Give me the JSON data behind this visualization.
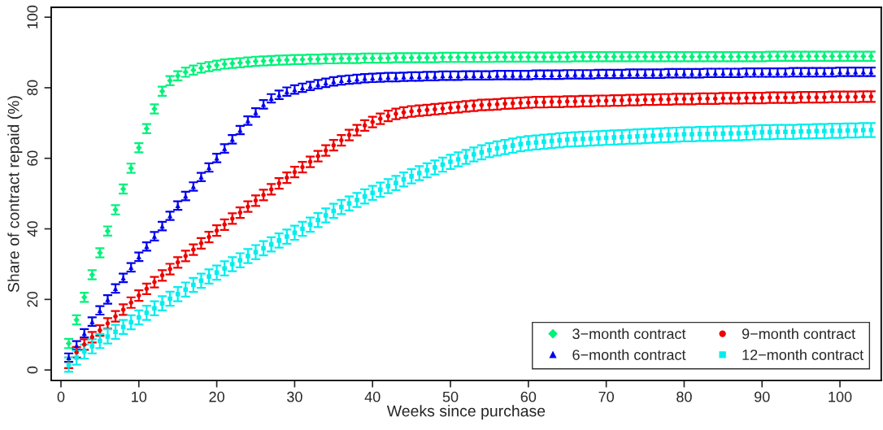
{
  "chart_data": {
    "type": "scatter",
    "xlabel": "Weeks since purchase",
    "ylabel": "Share of contract repaid (%)",
    "x": [
      1,
      2,
      3,
      4,
      5,
      6,
      7,
      8,
      9,
      10,
      11,
      12,
      13,
      14,
      15,
      16,
      17,
      18,
      19,
      20,
      21,
      22,
      23,
      24,
      25,
      26,
      27,
      28,
      29,
      30,
      31,
      32,
      33,
      34,
      35,
      36,
      37,
      38,
      39,
      40,
      41,
      42,
      43,
      44,
      45,
      46,
      47,
      48,
      49,
      50,
      51,
      52,
      53,
      54,
      55,
      56,
      57,
      58,
      59,
      60,
      61,
      62,
      63,
      64,
      65,
      66,
      67,
      68,
      69,
      70,
      71,
      72,
      73,
      74,
      75,
      76,
      77,
      78,
      79,
      80,
      81,
      82,
      83,
      84,
      85,
      86,
      87,
      88,
      89,
      90,
      91,
      92,
      93,
      94,
      95,
      96,
      97,
      98,
      99,
      100,
      101,
      102,
      103,
      104
    ],
    "xlim": [
      -1.25,
      105.3
    ],
    "xticks": [
      0,
      10,
      20,
      30,
      40,
      50,
      60,
      70,
      80,
      90,
      100
    ],
    "ylim": [
      -3,
      102.8
    ],
    "yticks": [
      0,
      20,
      40,
      60,
      80,
      100
    ],
    "grid": false,
    "legend": "bottom right",
    "series": [
      {
        "name": "3−month contract",
        "color": "#00f27a",
        "marker": "diamond",
        "values": [
          7.5,
          14.2,
          20.6,
          27.0,
          33.2,
          39.4,
          45.4,
          51.3,
          57.2,
          63.0,
          68.4,
          74.0,
          79.0,
          82.0,
          83.4,
          84.4,
          85.0,
          85.6,
          86.0,
          86.4,
          86.7,
          86.9,
          87.1,
          87.3,
          87.5,
          87.6,
          87.7,
          87.8,
          87.9,
          88.0,
          88.0,
          88.1,
          88.1,
          88.2,
          88.2,
          88.3,
          88.3,
          88.3,
          88.4,
          88.4,
          88.4,
          88.4,
          88.5,
          88.5,
          88.5,
          88.5,
          88.5,
          88.5,
          88.6,
          88.6,
          88.6,
          88.6,
          88.6,
          88.6,
          88.6,
          88.7,
          88.7,
          88.7,
          88.7,
          88.7,
          88.7,
          88.7,
          88.7,
          88.7,
          88.7,
          88.8,
          88.8,
          88.8,
          88.8,
          88.8,
          88.8,
          88.8,
          88.8,
          88.8,
          88.8,
          88.8,
          88.8,
          88.8,
          88.8,
          88.8,
          88.8,
          88.8,
          88.8,
          88.8,
          88.8,
          88.8,
          88.8,
          88.8,
          88.8,
          88.8,
          88.9,
          88.9,
          88.9,
          88.9,
          88.9,
          88.9,
          88.9,
          88.9,
          88.9,
          88.9,
          88.9,
          88.9,
          88.9,
          88.9
        ],
        "errors": [
          1.3,
          1.3,
          1.3,
          1.3,
          1.3,
          1.3,
          1.3,
          1.3,
          1.3,
          1.3,
          1.3,
          1.3,
          1.3,
          1.3,
          1.3,
          1.3,
          1.3,
          1.3,
          1.3,
          1.3,
          1.3,
          1.3,
          1.3,
          1.3,
          1.3,
          1.3,
          1.3,
          1.3,
          1.3,
          1.3,
          1.3,
          1.3,
          1.3,
          1.3,
          1.3,
          1.3,
          1.3,
          1.3,
          1.3,
          1.3,
          1.3,
          1.3,
          1.3,
          1.3,
          1.3,
          1.3,
          1.3,
          1.3,
          1.3,
          1.3,
          1.3,
          1.3,
          1.3,
          1.3,
          1.3,
          1.3,
          1.3,
          1.3,
          1.3,
          1.3,
          1.3,
          1.3,
          1.3,
          1.3,
          1.3,
          1.3,
          1.3,
          1.3,
          1.3,
          1.3,
          1.3,
          1.3,
          1.3,
          1.3,
          1.3,
          1.3,
          1.3,
          1.3,
          1.3,
          1.3,
          1.3,
          1.3,
          1.3,
          1.3,
          1.3,
          1.3,
          1.3,
          1.3,
          1.3,
          1.3,
          1.3,
          1.3,
          1.3,
          1.3,
          1.3,
          1.3,
          1.3,
          1.3,
          1.3,
          1.3,
          1.3,
          1.3,
          1.3,
          1.3
        ]
      },
      {
        "name": "6−month contract",
        "color": "#0000ee",
        "marker": "triangle",
        "values": [
          3.5,
          7.0,
          10.4,
          13.7,
          16.9,
          20.0,
          23.1,
          26.1,
          29.1,
          32.1,
          35.0,
          37.9,
          40.8,
          43.7,
          46.6,
          49.3,
          52.0,
          54.7,
          57.4,
          60.1,
          62.8,
          65.4,
          68.0,
          70.7,
          73.0,
          75.3,
          77.0,
          78.0,
          78.9,
          79.5,
          80.0,
          80.5,
          81.0,
          81.4,
          81.8,
          82.1,
          82.3,
          82.5,
          82.7,
          82.8,
          82.9,
          83.0,
          83.0,
          83.1,
          83.2,
          83.2,
          83.3,
          83.3,
          83.4,
          83.4,
          83.4,
          83.5,
          83.5,
          83.5,
          83.5,
          83.6,
          83.6,
          83.6,
          83.6,
          83.6,
          83.7,
          83.7,
          83.7,
          83.7,
          83.8,
          83.8,
          83.8,
          83.8,
          83.9,
          83.9,
          83.9,
          83.9,
          84.0,
          84.0,
          84.0,
          84.0,
          84.0,
          84.1,
          84.1,
          84.1,
          84.1,
          84.1,
          84.2,
          84.2,
          84.2,
          84.2,
          84.2,
          84.3,
          84.3,
          84.3,
          84.3,
          84.3,
          84.3,
          84.4,
          84.4,
          84.4,
          84.4,
          84.4,
          84.4,
          84.5,
          84.5,
          84.5,
          84.5,
          84.5
        ],
        "errors": [
          1.2,
          1.2,
          1.2,
          1.2,
          1.2,
          1.2,
          1.2,
          1.2,
          1.2,
          1.2,
          1.2,
          1.2,
          1.2,
          1.2,
          1.2,
          1.2,
          1.2,
          1.2,
          1.2,
          1.2,
          1.2,
          1.2,
          1.2,
          1.2,
          1.2,
          1.2,
          1.2,
          1.2,
          1.2,
          1.2,
          1.2,
          1.2,
          1.2,
          1.2,
          1.2,
          1.2,
          1.2,
          1.2,
          1.2,
          1.2,
          1.2,
          1.2,
          1.2,
          1.2,
          1.2,
          1.2,
          1.2,
          1.2,
          1.2,
          1.2,
          1.2,
          1.2,
          1.2,
          1.2,
          1.2,
          1.2,
          1.2,
          1.2,
          1.2,
          1.2,
          1.2,
          1.2,
          1.2,
          1.2,
          1.2,
          1.2,
          1.2,
          1.2,
          1.2,
          1.2,
          1.2,
          1.2,
          1.2,
          1.2,
          1.2,
          1.2,
          1.2,
          1.2,
          1.2,
          1.2,
          1.2,
          1.2,
          1.2,
          1.2,
          1.2,
          1.2,
          1.2,
          1.2,
          1.2,
          1.2,
          1.2,
          1.2,
          1.2,
          1.2,
          1.2,
          1.2,
          1.2,
          1.2,
          1.2,
          1.2,
          1.2,
          1.2,
          1.2,
          1.2
        ]
      },
      {
        "name": "9−month contract",
        "color": "#ee0000",
        "marker": "circle",
        "values": [
          2.0,
          5.0,
          7.2,
          9.3,
          11.2,
          13.2,
          15.2,
          17.1,
          19.1,
          21.1,
          23.0,
          24.9,
          26.8,
          28.6,
          30.5,
          32.3,
          34.1,
          35.9,
          37.7,
          39.5,
          41.2,
          42.9,
          44.6,
          46.3,
          48.0,
          49.6,
          51.2,
          52.9,
          54.5,
          56.1,
          57.5,
          59.0,
          60.6,
          62.2,
          63.7,
          65.1,
          66.6,
          68.0,
          69.3,
          70.3,
          71.2,
          72.0,
          72.6,
          73.0,
          73.3,
          73.5,
          73.7,
          73.9,
          74.1,
          74.3,
          74.5,
          74.7,
          74.9,
          75.1,
          75.2,
          75.3,
          75.5,
          75.6,
          75.7,
          75.8,
          75.9,
          75.9,
          76.0,
          76.0,
          76.1,
          76.1,
          76.2,
          76.2,
          76.3,
          76.3,
          76.4,
          76.4,
          76.5,
          76.5,
          76.6,
          76.6,
          76.7,
          76.7,
          76.8,
          76.8,
          76.8,
          76.9,
          76.9,
          76.9,
          77.0,
          77.0,
          77.0,
          77.1,
          77.1,
          77.1,
          77.2,
          77.2,
          77.2,
          77.2,
          77.3,
          77.3,
          77.3,
          77.3,
          77.4,
          77.4,
          77.4,
          77.4,
          77.5,
          77.5
        ],
        "errors": [
          1.5,
          1.5,
          1.5,
          1.5,
          1.5,
          1.5,
          1.5,
          1.5,
          1.5,
          1.5,
          1.5,
          1.5,
          1.5,
          1.5,
          1.5,
          1.5,
          1.5,
          1.5,
          1.5,
          1.5,
          1.5,
          1.5,
          1.5,
          1.5,
          1.5,
          1.5,
          1.5,
          1.5,
          1.5,
          1.5,
          1.5,
          1.5,
          1.5,
          1.5,
          1.5,
          1.5,
          1.5,
          1.5,
          1.5,
          1.5,
          1.5,
          1.5,
          1.5,
          1.5,
          1.5,
          1.5,
          1.5,
          1.5,
          1.5,
          1.5,
          1.5,
          1.5,
          1.5,
          1.5,
          1.5,
          1.5,
          1.5,
          1.5,
          1.5,
          1.5,
          1.5,
          1.5,
          1.5,
          1.5,
          1.5,
          1.5,
          1.5,
          1.5,
          1.5,
          1.5,
          1.5,
          1.5,
          1.5,
          1.5,
          1.5,
          1.5,
          1.5,
          1.5,
          1.5,
          1.5,
          1.5,
          1.5,
          1.5,
          1.5,
          1.5,
          1.5,
          1.5,
          1.5,
          1.5,
          1.5,
          1.5,
          1.5,
          1.5,
          1.5,
          1.5,
          1.5,
          1.5,
          1.5,
          1.5,
          1.5,
          1.5,
          1.5,
          1.5,
          1.5
        ]
      },
      {
        "name": "12−month contract",
        "color": "#00eeee",
        "marker": "square",
        "values": [
          1.5,
          3.5,
          5.2,
          6.7,
          8.2,
          9.5,
          10.8,
          12.2,
          13.5,
          14.9,
          16.2,
          17.5,
          18.9,
          20.2,
          21.5,
          22.8,
          24.1,
          25.3,
          26.5,
          27.6,
          28.8,
          30.0,
          31.1,
          32.3,
          33.4,
          34.5,
          35.6,
          36.7,
          37.8,
          38.9,
          40.0,
          41.2,
          42.5,
          43.8,
          45.1,
          46.2,
          47.2,
          48.2,
          49.2,
          50.2,
          51.1,
          52.1,
          53.0,
          54.0,
          54.9,
          55.8,
          56.6,
          57.4,
          58.2,
          59.0,
          59.7,
          60.4,
          61.1,
          61.7,
          62.3,
          62.8,
          63.2,
          63.6,
          64.0,
          64.3,
          64.5,
          64.7,
          64.9,
          65.1,
          65.3,
          65.4,
          65.5,
          65.6,
          65.7,
          65.8,
          65.9,
          66.0,
          66.1,
          66.2,
          66.3,
          66.4,
          66.5,
          66.6,
          66.7,
          66.8,
          66.8,
          66.9,
          66.9,
          67.0,
          67.0,
          67.1,
          67.1,
          67.2,
          67.3,
          67.4,
          67.4,
          67.5,
          67.5,
          67.5,
          67.6,
          67.6,
          67.7,
          67.7,
          67.8,
          67.8,
          67.9,
          67.9,
          68.0,
          68.0
        ],
        "errors": [
          2.0,
          2.0,
          2.0,
          2.0,
          2.0,
          2.0,
          2.0,
          2.0,
          2.0,
          2.0,
          2.0,
          2.0,
          2.0,
          2.0,
          2.0,
          2.0,
          2.0,
          2.0,
          2.0,
          2.0,
          2.0,
          2.0,
          2.0,
          2.0,
          2.0,
          2.0,
          2.0,
          2.0,
          2.0,
          2.0,
          2.0,
          2.0,
          2.0,
          2.0,
          2.0,
          2.0,
          2.0,
          2.0,
          2.0,
          2.0,
          2.0,
          2.0,
          2.0,
          2.0,
          2.0,
          2.0,
          2.0,
          2.0,
          2.0,
          2.0,
          2.0,
          2.0,
          2.0,
          2.0,
          2.0,
          2.0,
          2.0,
          2.0,
          2.0,
          2.0,
          2.0,
          2.0,
          2.0,
          2.0,
          2.0,
          2.0,
          2.0,
          2.0,
          2.0,
          2.0,
          2.0,
          2.0,
          2.0,
          2.0,
          2.0,
          2.0,
          2.0,
          2.0,
          2.0,
          2.0,
          2.0,
          2.0,
          2.0,
          2.0,
          2.0,
          2.0,
          2.0,
          2.0,
          2.0,
          2.0,
          2.0,
          2.0,
          2.0,
          2.0,
          2.0,
          2.0,
          2.0,
          2.0,
          2.0,
          2.0,
          2.0,
          2.0,
          2.0,
          2.0
        ]
      }
    ]
  }
}
